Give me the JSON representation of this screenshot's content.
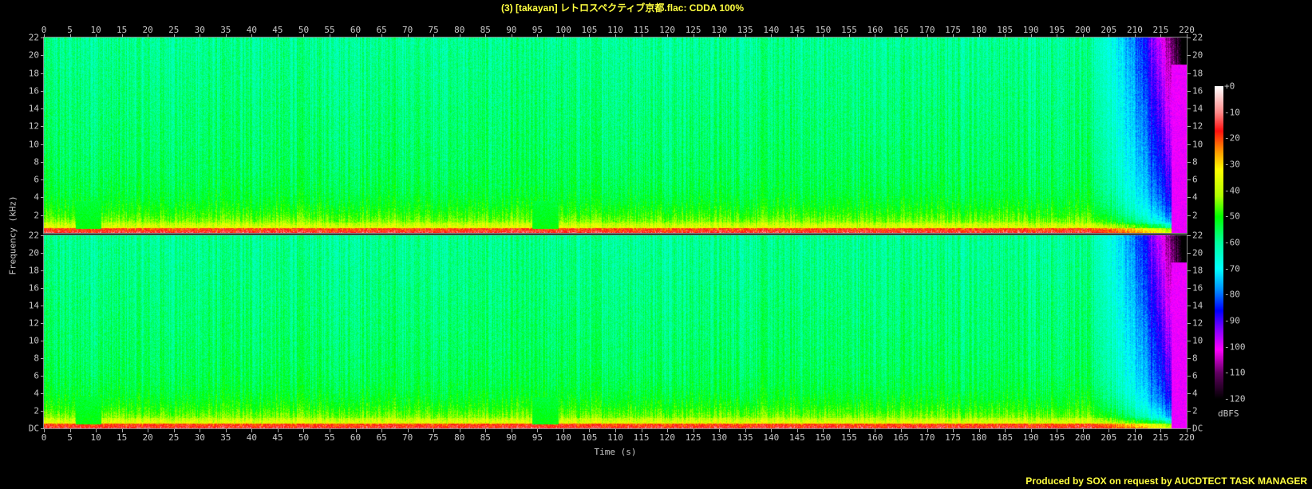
{
  "title": "(3) [takayan] レトロスペクティブ京都.flac: CDDA 100%",
  "footer": "Produced by SOX on request by AUCDTECT TASK MANAGER",
  "chart_data": {
    "type": "heatmap",
    "subtype": "spectrogram",
    "channels": 2,
    "xlabel": "Time (s)",
    "ylabel": "Frequency (kHz)",
    "xlim": [
      0,
      220
    ],
    "ylim": [
      0,
      22
    ],
    "x_ticks": [
      0,
      5,
      10,
      15,
      20,
      25,
      30,
      35,
      40,
      45,
      50,
      55,
      60,
      65,
      70,
      75,
      80,
      85,
      90,
      95,
      100,
      105,
      110,
      115,
      120,
      125,
      130,
      135,
      140,
      145,
      150,
      155,
      160,
      165,
      170,
      175,
      180,
      185,
      190,
      195,
      200,
      205,
      210,
      215,
      220
    ],
    "y_ticks": [
      {
        "value": 0,
        "label": "DC"
      },
      {
        "value": 2,
        "label": "2"
      },
      {
        "value": 4,
        "label": "4"
      },
      {
        "value": 6,
        "label": "6"
      },
      {
        "value": 8,
        "label": "8"
      },
      {
        "value": 10,
        "label": "10"
      },
      {
        "value": 12,
        "label": "12"
      },
      {
        "value": 14,
        "label": "14"
      },
      {
        "value": 16,
        "label": "16"
      },
      {
        "value": 18,
        "label": "18"
      },
      {
        "value": 20,
        "label": "20"
      },
      {
        "value": 22,
        "label": "22"
      }
    ],
    "colorbar": {
      "label": "dBFS",
      "range": [
        -120,
        0
      ],
      "ticks": [
        "+0",
        "-10",
        "-20",
        "-30",
        "-40",
        "-50",
        "-60",
        "-70",
        "-80",
        "-90",
        "-100",
        "-110",
        "-120"
      ],
      "colors": [
        {
          "db": 0,
          "color": "#ffffff"
        },
        {
          "db": -10,
          "color": "#ff8a8a"
        },
        {
          "db": -17,
          "color": "#ff1010"
        },
        {
          "db": -25,
          "color": "#ff9a00"
        },
        {
          "db": -32,
          "color": "#ffff00"
        },
        {
          "db": -42,
          "color": "#b0ff00"
        },
        {
          "db": -50,
          "color": "#00ff00"
        },
        {
          "db": -60,
          "color": "#00ffa0"
        },
        {
          "db": -70,
          "color": "#00ffff"
        },
        {
          "db": -78,
          "color": "#0090ff"
        },
        {
          "db": -86,
          "color": "#0000ff"
        },
        {
          "db": -93,
          "color": "#8000ff"
        },
        {
          "db": -101,
          "color": "#ff00ff"
        },
        {
          "db": -110,
          "color": "#600060"
        },
        {
          "db": -120,
          "color": "#000000"
        }
      ]
    },
    "features": {
      "quiet_sections_s": [
        [
          6,
          11
        ],
        [
          94,
          99
        ]
      ],
      "fade_out_start_s": 200
    }
  }
}
